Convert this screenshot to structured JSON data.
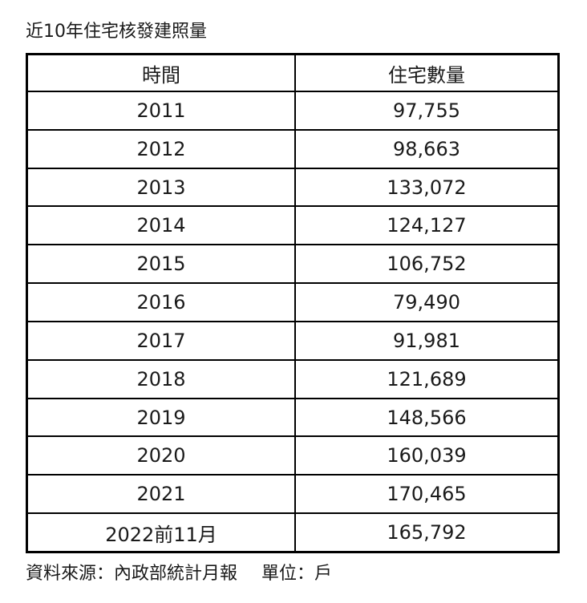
{
  "title": "近10年住宅核發建照量",
  "chart_data": {
    "type": "table",
    "title": "近10年住宅核發建照量",
    "columns": [
      "時間",
      "住宅數量"
    ],
    "rows": [
      {
        "year": "2011",
        "value": "97,755"
      },
      {
        "year": "2012",
        "value": "98,663"
      },
      {
        "year": "2013",
        "value": "133,072"
      },
      {
        "year": "2014",
        "value": "124,127"
      },
      {
        "year": "2015",
        "value": "106,752"
      },
      {
        "year": "2016",
        "value": "79,490"
      },
      {
        "year": "2017",
        "value": "91,981"
      },
      {
        "year": "2018",
        "value": "121,689"
      },
      {
        "year": "2019",
        "value": "148,566"
      },
      {
        "year": "2020",
        "value": "160,039"
      },
      {
        "year": "2021",
        "value": "170,465"
      },
      {
        "year": "2022前11月",
        "value": "165,792"
      }
    ]
  },
  "footer": {
    "source": "資料來源：內政部統計月報",
    "unit": "單位：戶"
  }
}
